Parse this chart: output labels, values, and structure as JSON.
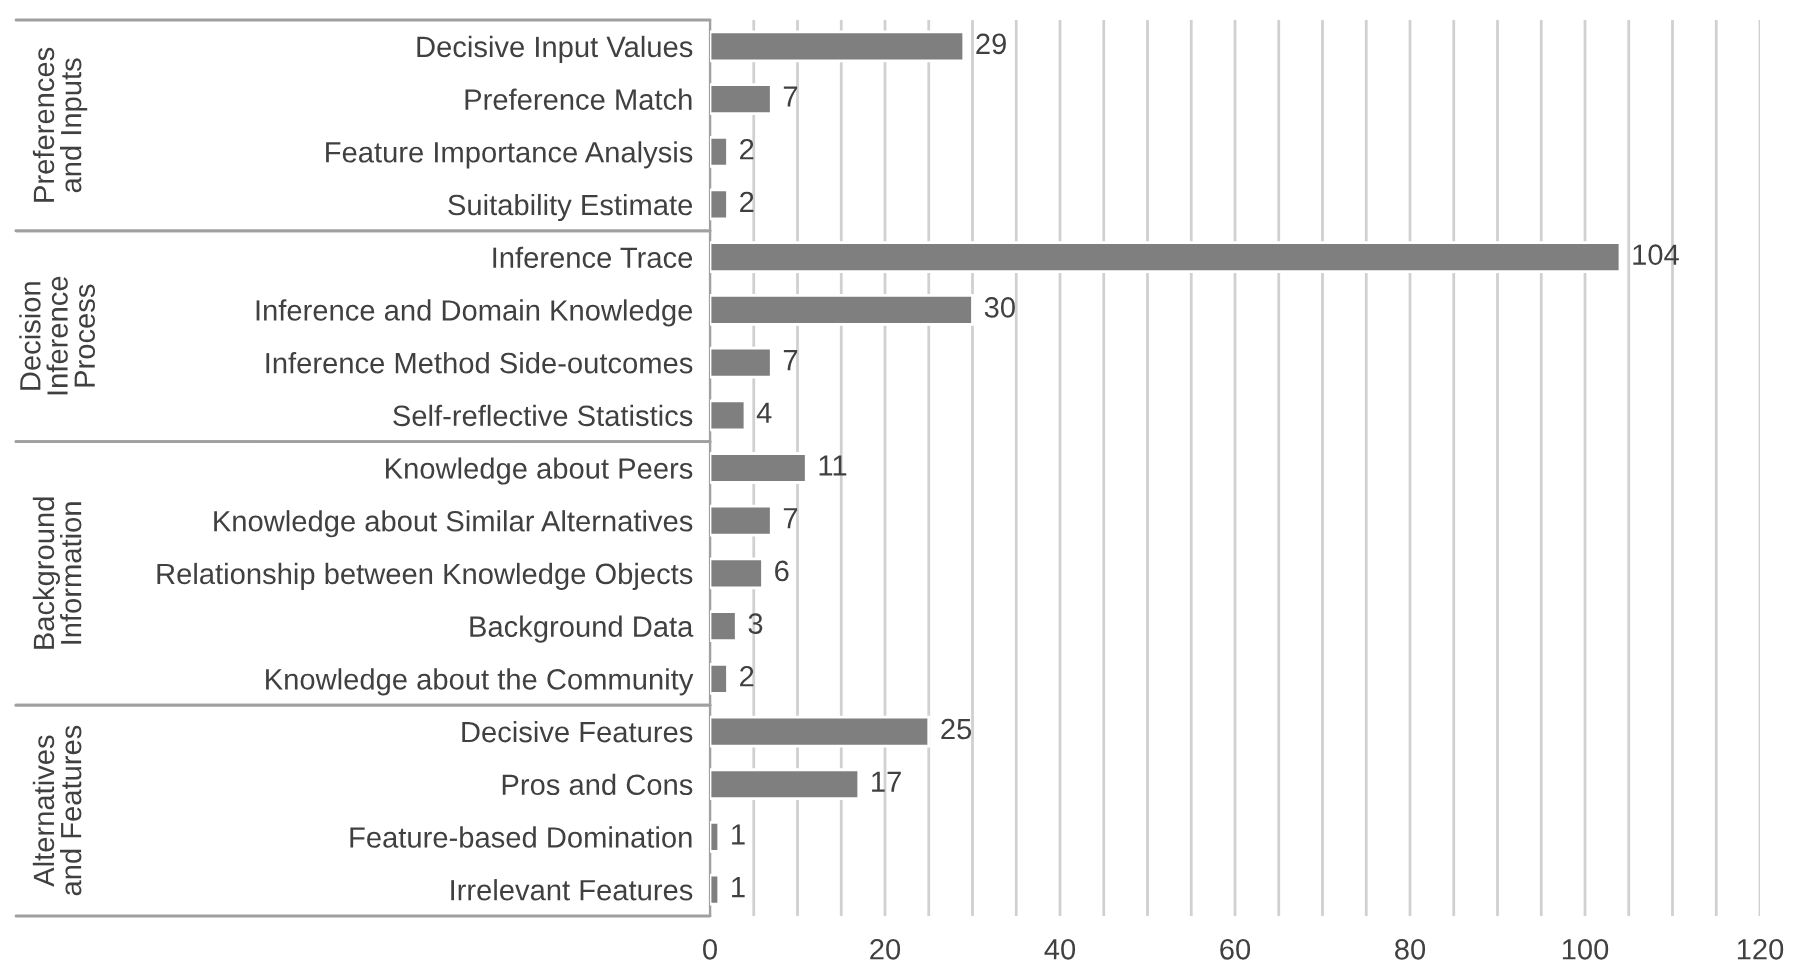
{
  "chart_data": {
    "type": "bar",
    "orientation": "horizontal",
    "categories": [
      "Decisive Input Values",
      "Preference Match",
      "Feature Importance Analysis",
      "Suitability Estimate",
      "Inference Trace",
      "Inference and Domain Knowledge",
      "Inference Method Side-outcomes",
      "Self-reflective Statistics",
      "Knowledge about Peers",
      "Knowledge about Similar Alternatives",
      "Relationship between Knowledge Objects",
      "Background Data",
      "Knowledge about the Community",
      "Decisive Features",
      "Pros and Cons",
      "Feature-based Domination",
      "Irrelevant Features"
    ],
    "values": [
      29,
      7,
      2,
      2,
      104,
      30,
      7,
      4,
      11,
      7,
      6,
      3,
      2,
      25,
      17,
      1,
      1
    ],
    "color": "#7f7f7f",
    "data_labels": true,
    "xlim": [
      0,
      120
    ],
    "xticks": [
      0,
      {
        "value": 5,
        "label": null
      },
      {
        "value": 10,
        "label": null
      },
      {
        "value": 15,
        "label": null
      },
      20,
      {
        "value": 25,
        "label": null
      },
      {
        "value": 30,
        "label": null
      },
      {
        "value": 35,
        "label": null
      },
      40,
      {
        "value": 45,
        "label": null
      },
      {
        "value": 50,
        "label": null
      },
      {
        "value": 55,
        "label": null
      },
      60,
      {
        "value": 65,
        "label": null
      },
      {
        "value": 70,
        "label": null
      },
      {
        "value": 75,
        "label": null
      },
      80,
      {
        "value": 85,
        "label": null
      },
      {
        "value": 90,
        "label": null
      },
      {
        "value": 95,
        "label": null
      },
      100,
      {
        "value": 105,
        "label": null
      },
      {
        "value": 110,
        "label": null
      },
      {
        "value": 115,
        "label": null
      },
      120
    ],
    "grid": "x",
    "annotations": [
      "Preferences\nand Inputs",
      "Decision\nInference\nProcess",
      "Background\nInformation",
      "Alternatives\nand Features"
    ]
  }
}
